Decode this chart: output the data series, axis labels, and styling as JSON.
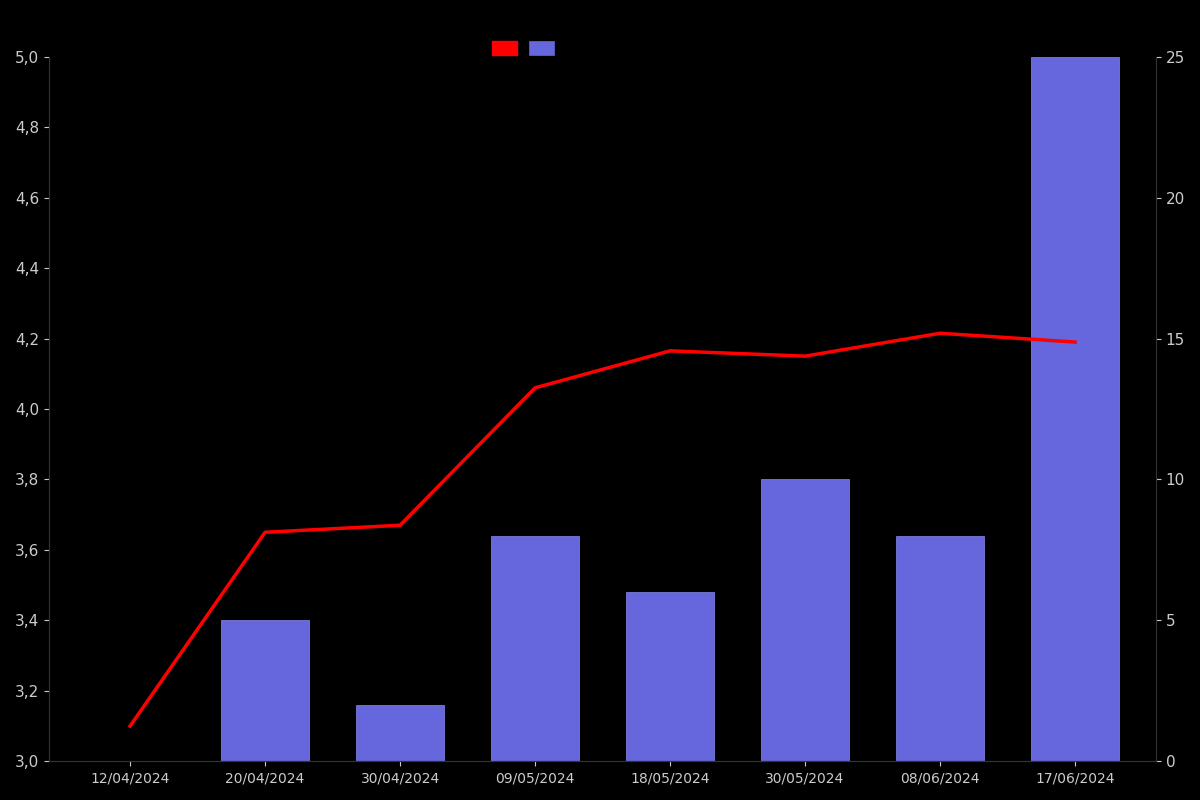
{
  "dates": [
    "12/04/2024",
    "20/04/2024",
    "30/04/2024",
    "09/05/2024",
    "18/05/2024",
    "30/05/2024",
    "08/06/2024",
    "17/06/2024"
  ],
  "bar_counts": [
    0,
    5,
    2,
    8,
    6,
    10,
    8,
    25
  ],
  "line_values": [
    3.1,
    3.65,
    3.67,
    4.06,
    4.165,
    4.15,
    4.215,
    4.19
  ],
  "bar_color": "#6666dd",
  "bar_edge_color": "#8888ee",
  "line_color": "#ff0000",
  "background_color": "#000000",
  "text_color": "#cccccc",
  "ylim_left": [
    3.0,
    5.0
  ],
  "ylim_right": [
    0,
    25
  ],
  "left_yticks": [
    3.0,
    3.2,
    3.4,
    3.6,
    3.8,
    4.0,
    4.2,
    4.4,
    4.6,
    4.8,
    5.0
  ],
  "right_yticks": [
    0,
    5,
    10,
    15,
    20,
    25
  ]
}
